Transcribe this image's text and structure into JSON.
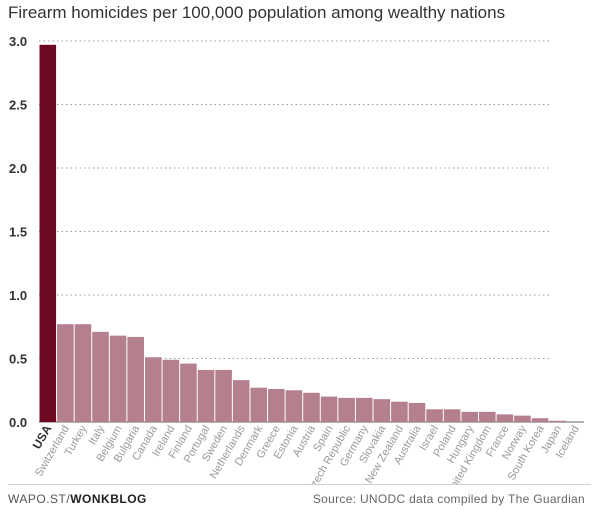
{
  "chart_data": {
    "type": "bar",
    "title": "Firearm homicides per 100,000 population among wealthy nations",
    "xlabel": "",
    "ylabel": "",
    "ylim": [
      0,
      3.0
    ],
    "yticks": [
      "0.0",
      "0.5",
      "1.0",
      "1.5",
      "2.0",
      "2.5",
      "3.0"
    ],
    "grid": true,
    "highlight_category": "USA",
    "categories": [
      "USA",
      "Switzerland",
      "Turkey",
      "Italy",
      "Belgium",
      "Bulgaria",
      "Canada",
      "Ireland",
      "Finland",
      "Portugal",
      "Sweden",
      "Netherlands",
      "Denmark",
      "Greece",
      "Estonia",
      "Austria",
      "Spain",
      "Czech Republic",
      "Germany",
      "Slovakia",
      "New Zealand",
      "Australia",
      "Israel",
      "Poland",
      "Hungary",
      "United Kingdom",
      "France",
      "Norway",
      "South Korea",
      "Japan",
      "Iceland"
    ],
    "values": [
      2.97,
      0.77,
      0.77,
      0.71,
      0.68,
      0.67,
      0.51,
      0.49,
      0.46,
      0.41,
      0.41,
      0.33,
      0.27,
      0.26,
      0.25,
      0.23,
      0.2,
      0.19,
      0.19,
      0.18,
      0.16,
      0.15,
      0.1,
      0.1,
      0.08,
      0.08,
      0.06,
      0.05,
      0.03,
      0.01,
      0.0
    ]
  },
  "colors": {
    "highlight": "#6b0a20",
    "bar": "#b5808e",
    "grid": "#999999",
    "axis_text": "#333333",
    "label_text": "#9a9a9a"
  },
  "footer": {
    "left_prefix": "WAPO.ST/",
    "left_brand": "WONKBLOG",
    "right": "Source: UNODC data compiled by The Guardian"
  }
}
